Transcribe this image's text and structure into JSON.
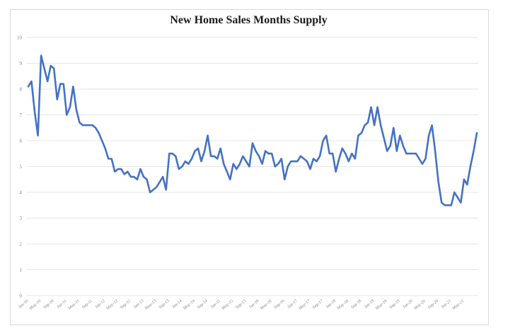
{
  "chart_data": {
    "type": "line",
    "title": "New Home Sales Months Supply",
    "xlabel": "",
    "ylabel": "",
    "ylim": [
      0,
      10
    ],
    "yticks": [
      "0",
      "1",
      "2",
      "3",
      "4",
      "5",
      "6",
      "7",
      "8",
      "9",
      "10"
    ],
    "x_tick_labels": [
      "Jan-10",
      "May-10",
      "Sep-10",
      "Jan-11",
      "May-11",
      "Sep-11",
      "Jan-12",
      "May-12",
      "Sep-12",
      "Jan-13",
      "May-13",
      "Sep-13",
      "Jan-14",
      "May-14",
      "Sep-14",
      "Jan-15",
      "May-15",
      "Sep-15",
      "Jan-16",
      "May-16",
      "Sep-16",
      "Jan-17",
      "May-17",
      "Sep-17",
      "Jan-18",
      "May-18",
      "Sep-18",
      "Jan-19",
      "May-19",
      "Sep-19",
      "Jan-20",
      "May-20",
      "Sep-20",
      "Jan-21",
      "May-21"
    ],
    "grid": true,
    "legend": "none",
    "line_color": "#4472c4",
    "series": [
      {
        "x_start": "Jan-10",
        "frequency": "monthly",
        "values": [
          8.1,
          8.3,
          7.1,
          6.2,
          9.3,
          8.8,
          8.3,
          8.9,
          8.8,
          7.6,
          8.2,
          8.2,
          7.0,
          7.3,
          8.1,
          7.2,
          6.7,
          6.6,
          6.6,
          6.6,
          6.6,
          6.5,
          6.3,
          6.0,
          5.7,
          5.3,
          5.3,
          4.8,
          4.9,
          4.9,
          4.7,
          4.8,
          4.6,
          4.6,
          4.5,
          4.9,
          4.6,
          4.5,
          4.0,
          4.1,
          4.2,
          4.4,
          4.6,
          4.1,
          5.5,
          5.5,
          5.4,
          4.9,
          5.0,
          5.2,
          5.1,
          5.3,
          5.6,
          5.7,
          5.2,
          5.6,
          6.2,
          5.4,
          5.4,
          5.3,
          5.7,
          5.1,
          4.8,
          4.5,
          5.1,
          4.9,
          5.1,
          5.4,
          5.2,
          5.0,
          5.9,
          5.6,
          5.4,
          5.1,
          5.6,
          5.5,
          5.5,
          5.0,
          5.1,
          5.3,
          4.5,
          5.0,
          5.2,
          5.2,
          5.2,
          5.4,
          5.3,
          5.2,
          4.9,
          5.3,
          5.2,
          5.4,
          6.0,
          6.2,
          5.5,
          5.5,
          4.8,
          5.3,
          5.7,
          5.5,
          5.2,
          5.5,
          5.3,
          6.2,
          6.3,
          6.6,
          6.7,
          7.3,
          6.6,
          7.3,
          6.6,
          6.1,
          5.6,
          5.8,
          6.5,
          5.6,
          6.2,
          5.8,
          5.5,
          5.5,
          5.5,
          5.5,
          5.3,
          5.1,
          5.3,
          6.2,
          6.6,
          5.6,
          4.4,
          3.6,
          3.5,
          3.5,
          3.5,
          4.0,
          3.8,
          3.6,
          4.5,
          4.3,
          5.0,
          5.6,
          6.3
        ]
      }
    ]
  }
}
